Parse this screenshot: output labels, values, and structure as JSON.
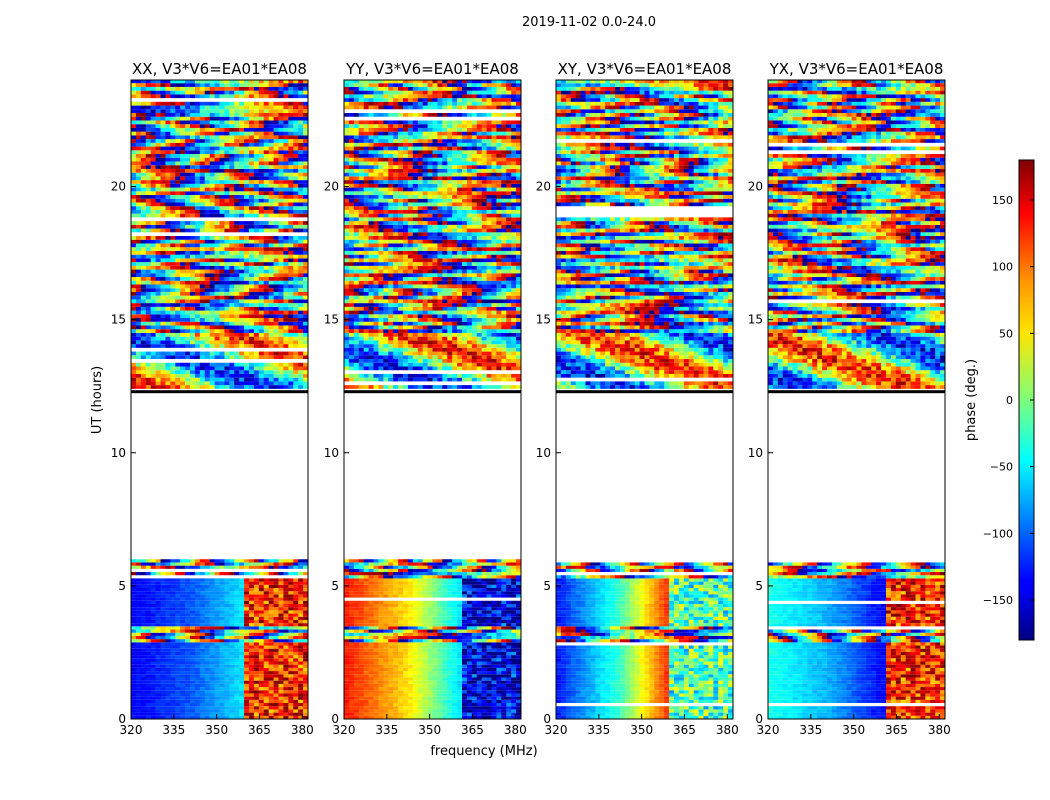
{
  "chart_data": {
    "type": "heatmap",
    "title": "2019-11-02 0.0-24.0",
    "xlabel": "frequency (MHz)",
    "ylabel": "UT (hours)",
    "xlim": [
      320,
      382
    ],
    "ylim": [
      0,
      24
    ],
    "xticks": [
      "320",
      "335",
      "350",
      "365",
      "380"
    ],
    "yticks": [
      "0",
      "5",
      "10",
      "15",
      "20"
    ],
    "no_data_range_hours": [
      12.2,
      6.0
    ],
    "panels": [
      {
        "title": "XX, V3*V6=EA01*EA08"
      },
      {
        "title": "YY, V3*V6=EA01*EA08"
      },
      {
        "title": "XY, V3*V6=EA01*EA08"
      },
      {
        "title": "YX, V3*V6=EA01*EA08"
      }
    ],
    "colorbar": {
      "label": "phase (deg.)",
      "range": [
        -180,
        180
      ],
      "ticks": [
        "150",
        "100",
        "50",
        "0",
        "−50",
        "−100",
        "−150"
      ],
      "colormap": "jet"
    }
  }
}
